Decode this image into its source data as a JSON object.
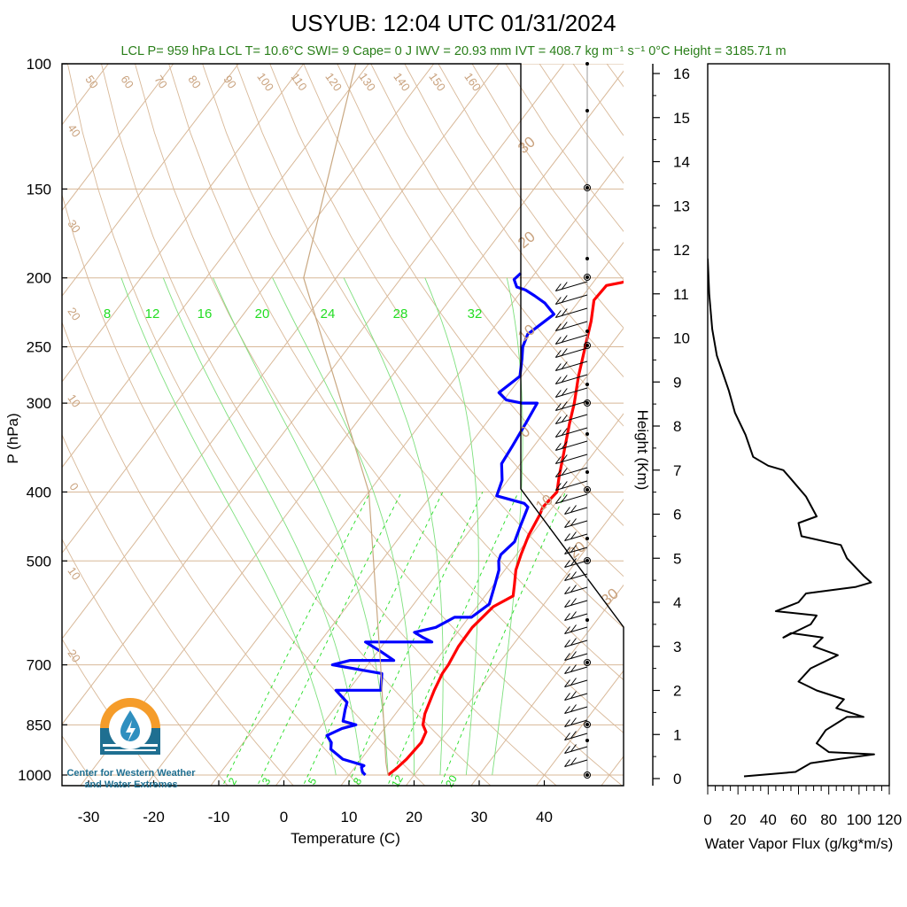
{
  "title": "USYUB: 12:04 UTC 01/31/2024",
  "subtitle": "LCL P= 959 hPa  LCL T= 10.6°C  SWI= 9  Cape= 0 J  IWV = 20.93 mm  IVT = 408.7 kg m⁻¹ s⁻¹  0°C Height = 3185.71 m",
  "logo_text": [
    "Center for Western Weather",
    "and Water Extremes"
  ],
  "colors": {
    "temperature": "#ff0000",
    "dewpoint": "#0000ff",
    "isotherm": "#d8b898",
    "mixing_ratio": "#22dd22",
    "wind": "#000000",
    "flux": "#000000"
  },
  "chart_data": [
    {
      "type": "line",
      "title": "USYUB: 12:04 UTC 01/31/2024",
      "xlabel": "Temperature (C)",
      "ylabel": "P (hPa)",
      "y_scale": "log",
      "x_ticks": [
        -30,
        -20,
        -10,
        0,
        10,
        20,
        30,
        40
      ],
      "y_ticks": [
        100,
        150,
        200,
        250,
        300,
        400,
        500,
        700,
        850,
        1000
      ],
      "isotherm_labels": [
        "50",
        "60",
        "70",
        "80",
        "90",
        "100",
        "110",
        "120",
        "130",
        "140",
        "150",
        "160",
        "40",
        "30",
        "20",
        "10",
        "0",
        "10",
        "20"
      ],
      "right_isotherm_labels": [
        "30",
        "20",
        "10",
        "0",
        "10",
        "20",
        "30"
      ],
      "mixing_ratio_labels_top": [
        "8",
        "12",
        "16",
        "20",
        "24",
        "28",
        "32"
      ],
      "mixing_ratio_labels_bottom": [
        "2",
        "3",
        "5",
        "8",
        "12",
        "20"
      ],
      "series": [
        {
          "name": "Temperature",
          "points": [
            [
              16,
              1000
            ],
            [
              16.5,
              980
            ],
            [
              17,
              950
            ],
            [
              17.3,
              900
            ],
            [
              16.8,
              870
            ],
            [
              15.5,
              850
            ],
            [
              14.5,
              820
            ],
            [
              13.2,
              760
            ],
            [
              12.5,
              720
            ],
            [
              12.4,
              700
            ],
            [
              11.8,
              660
            ],
            [
              11.7,
              620
            ],
            [
              12.5,
              580
            ],
            [
              14.3,
              560
            ],
            [
              13.2,
              540
            ],
            [
              11.7,
              515
            ],
            [
              10.7,
              490
            ],
            [
              9.6,
              460
            ],
            [
              8.9,
              430
            ],
            [
              8.5,
              420
            ],
            [
              8.9,
              400
            ],
            [
              7.4,
              380
            ],
            [
              5.2,
              350
            ],
            [
              2.8,
              320
            ],
            [
              1.2,
              300
            ],
            [
              -1.3,
              275
            ],
            [
              -3.7,
              250
            ],
            [
              -5.8,
              230
            ],
            [
              -7.8,
              215
            ],
            [
              -7.6,
              205
            ],
            [
              -5.6,
              203
            ],
            [
              -3.8,
              200
            ]
          ]
        },
        {
          "name": "Dewpoint",
          "points": [
            [
              12.5,
              1000
            ],
            [
              11.7,
              990
            ],
            [
              11.0,
              975
            ],
            [
              11.2,
              970
            ],
            [
              10.3,
              965
            ],
            [
              7.2,
              950
            ],
            [
              4.2,
              920
            ],
            [
              3.5,
              900
            ],
            [
              2.0,
              880
            ],
            [
              3.5,
              860
            ],
            [
              5.2,
              850
            ],
            [
              2.8,
              840
            ],
            [
              1.8,
              810
            ],
            [
              1.2,
              790
            ],
            [
              -1.9,
              760
            ],
            [
              5.0,
              760
            ],
            [
              3.2,
              720
            ],
            [
              -5.4,
              700
            ],
            [
              -3.2,
              690
            ],
            [
              3.5,
              690
            ],
            [
              0.4,
              670
            ],
            [
              -3.0,
              650
            ],
            [
              7.2,
              650
            ],
            [
              5.2,
              640
            ],
            [
              3.4,
              630
            ],
            [
              6.1,
              620
            ],
            [
              7.8,
              600
            ],
            [
              10.4,
              600
            ],
            [
              11.6,
              575
            ],
            [
              10.2,
              540
            ],
            [
              9.1,
              515
            ],
            [
              8.0,
              500
            ],
            [
              7.6,
              490
            ],
            [
              8.2,
              470
            ],
            [
              7.2,
              445
            ],
            [
              6.2,
              420
            ],
            [
              5.2,
              415
            ],
            [
              0.1,
              405
            ],
            [
              -0.9,
              385
            ],
            [
              -2.9,
              365
            ],
            [
              -3.3,
              345
            ],
            [
              -3.9,
              320
            ],
            [
              -4.5,
              300
            ],
            [
              -6.9,
              300
            ],
            [
              -9.6,
              297
            ],
            [
              -11.6,
              290
            ],
            [
              -10.3,
              275
            ],
            [
              -12.0,
              260
            ],
            [
              -13.3,
              250
            ],
            [
              -14.0,
              240
            ],
            [
              -12.3,
              225
            ],
            [
              -15.0,
              217
            ],
            [
              -17.4,
              212
            ],
            [
              -19.5,
              208
            ],
            [
              -21.2,
              206
            ],
            [
              -22.5,
              201
            ],
            [
              -22.2,
              197
            ]
          ]
        }
      ]
    },
    {
      "type": "line",
      "xlabel": "Water Vapor Flux (g/kg*m/s)",
      "ylabel": "Height (Km)",
      "xlim": [
        0,
        120
      ],
      "ylim": [
        0,
        16
      ],
      "x_ticks": [
        0,
        20,
        40,
        60,
        80,
        100,
        120
      ],
      "y_ticks": [
        0,
        1,
        2,
        3,
        4,
        5,
        6,
        7,
        8,
        9,
        10,
        11,
        12,
        13,
        14,
        15,
        16
      ],
      "series": [
        {
          "name": "Water Vapor Flux",
          "points": [
            [
              24,
              0.05
            ],
            [
              58,
              0.15
            ],
            [
              68,
              0.35
            ],
            [
              88,
              0.45
            ],
            [
              110,
              0.55
            ],
            [
              80,
              0.6
            ],
            [
              72,
              0.8
            ],
            [
              78,
              1.1
            ],
            [
              92,
              1.4
            ],
            [
              103,
              1.4
            ],
            [
              85,
              1.6
            ],
            [
              90,
              1.8
            ],
            [
              72,
              2.0
            ],
            [
              60,
              2.2
            ],
            [
              68,
              2.5
            ],
            [
              86,
              2.8
            ],
            [
              70,
              3.0
            ],
            [
              76,
              3.2
            ],
            [
              55,
              3.3
            ],
            [
              50,
              3.2
            ],
            [
              68,
              3.5
            ],
            [
              72,
              3.7
            ],
            [
              45,
              3.8
            ],
            [
              60,
              4.0
            ],
            [
              65,
              4.2
            ],
            [
              98,
              4.35
            ],
            [
              108,
              4.45
            ],
            [
              103,
              4.6
            ],
            [
              92,
              5.0
            ],
            [
              88,
              5.3
            ],
            [
              62,
              5.5
            ],
            [
              60,
              5.8
            ],
            [
              72,
              5.95
            ],
            [
              65,
              6.4
            ],
            [
              55,
              6.8
            ],
            [
              50,
              7.0
            ],
            [
              40,
              7.1
            ],
            [
              30,
              7.3
            ],
            [
              25,
              7.8
            ],
            [
              18,
              8.3
            ],
            [
              14,
              8.8
            ],
            [
              10,
              9.2
            ],
            [
              6,
              9.6
            ],
            [
              3,
              10.2
            ],
            [
              1,
              11.0
            ],
            [
              0,
              11.8
            ]
          ]
        }
      ]
    }
  ]
}
